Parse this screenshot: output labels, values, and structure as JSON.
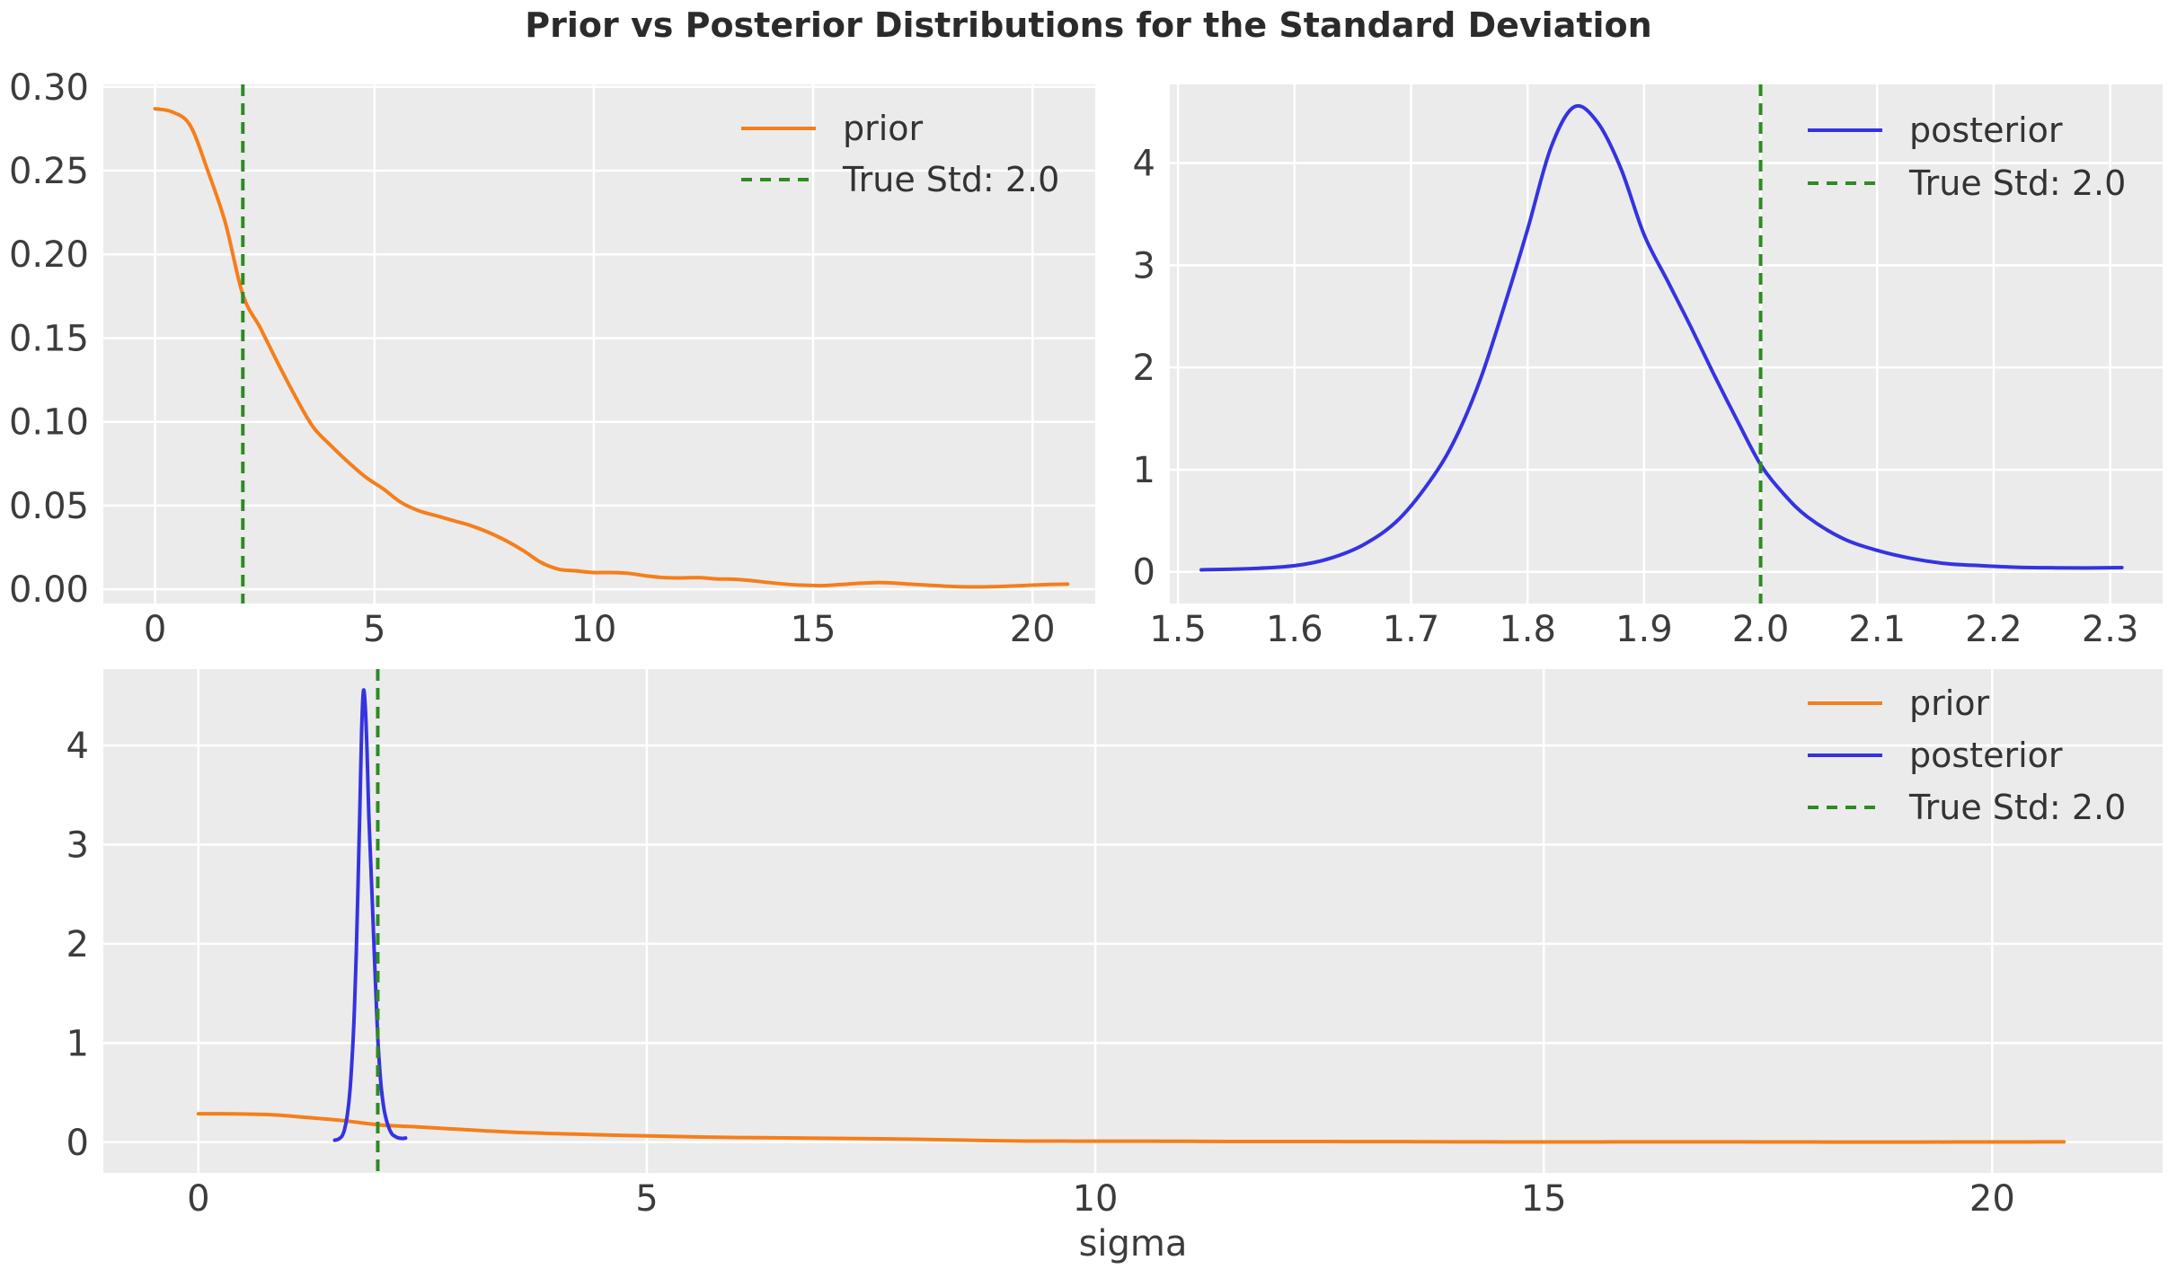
{
  "figure": {
    "title": "Prior vs Posterior Distributions for the Standard Deviation"
  },
  "style": {
    "background": "#ffffff",
    "axes_background": "#ebebeb",
    "grid_color": "#ffffff",
    "tick_label_color": "#3c3c3c",
    "title_color": "#2b2b2b",
    "legend_text_color": "#333333",
    "prior_color": "#f57e1b",
    "posterior_color": "#3533e0",
    "true_std_color": "#2e8b22"
  },
  "chart_data": [
    {
      "id": "prior",
      "name": "prior-subplot",
      "type": "line",
      "xlim": [
        -1.18,
        21.43
      ],
      "ylim": [
        -0.0085,
        0.3015
      ],
      "xticks": [
        0,
        5,
        10,
        15,
        20
      ],
      "xtick_labels": [
        "0",
        "5",
        "10",
        "15",
        "20"
      ],
      "yticks": [
        0.0,
        0.05,
        0.1,
        0.15,
        0.2,
        0.25,
        0.3
      ],
      "ytick_labels": [
        "0.00",
        "0.05",
        "0.10",
        "0.15",
        "0.20",
        "0.25",
        "0.30"
      ],
      "grid": true,
      "legend_position": "upper right",
      "xlabel": "",
      "series": [
        {
          "name": "prior",
          "color_key": "prior_color",
          "style": "solid",
          "x": [
            0.0,
            0.4,
            0.8,
            1.2,
            1.6,
            2.0,
            2.4,
            2.8,
            3.2,
            3.6,
            4.0,
            4.4,
            4.8,
            5.2,
            5.6,
            6.0,
            6.4,
            6.8,
            7.2,
            7.6,
            8.0,
            8.4,
            8.8,
            9.2,
            9.6,
            10.0,
            10.4,
            10.8,
            11.2,
            11.6,
            12.0,
            12.4,
            12.8,
            13.2,
            13.6,
            14.0,
            14.4,
            14.8,
            15.2,
            15.6,
            16.0,
            16.4,
            16.8,
            17.2,
            17.6,
            18.0,
            18.4,
            18.8,
            19.2,
            19.6,
            20.0,
            20.4,
            20.8
          ],
          "y": [
            0.287,
            0.285,
            0.277,
            0.25,
            0.219,
            0.176,
            0.156,
            0.135,
            0.115,
            0.097,
            0.086,
            0.076,
            0.067,
            0.06,
            0.052,
            0.047,
            0.044,
            0.041,
            0.038,
            0.034,
            0.029,
            0.023,
            0.016,
            0.012,
            0.011,
            0.01,
            0.01,
            0.0095,
            0.008,
            0.007,
            0.0068,
            0.007,
            0.0062,
            0.006,
            0.0052,
            0.004,
            0.003,
            0.0024,
            0.0022,
            0.0028,
            0.0035,
            0.004,
            0.0038,
            0.0031,
            0.0025,
            0.0019,
            0.0015,
            0.0014,
            0.0016,
            0.002,
            0.0025,
            0.0029,
            0.0031
          ]
        }
      ],
      "vline": {
        "x": 2.0,
        "label": "True Std: 2.0",
        "style": "dashed",
        "color_key": "true_std_color"
      }
    },
    {
      "id": "posterior",
      "name": "posterior-subplot",
      "type": "line",
      "xlim": [
        1.493,
        2.345
      ],
      "ylim": [
        -0.31,
        4.77
      ],
      "xticks": [
        1.5,
        1.6,
        1.7,
        1.8,
        1.9,
        2.0,
        2.1,
        2.2,
        2.3
      ],
      "xtick_labels": [
        "1.5",
        "1.6",
        "1.7",
        "1.8",
        "1.9",
        "2.0",
        "2.1",
        "2.2",
        "2.3"
      ],
      "yticks": [
        0,
        1,
        2,
        3,
        4
      ],
      "ytick_labels": [
        "0",
        "1",
        "2",
        "3",
        "4"
      ],
      "grid": true,
      "legend_position": "upper right",
      "xlabel": "",
      "series": [
        {
          "name": "posterior",
          "color_key": "posterior_color",
          "style": "solid",
          "x": [
            1.52,
            1.56,
            1.6,
            1.63,
            1.66,
            1.69,
            1.72,
            1.74,
            1.76,
            1.78,
            1.8,
            1.82,
            1.84,
            1.86,
            1.88,
            1.9,
            1.92,
            1.94,
            1.96,
            1.98,
            2.0,
            2.02,
            2.04,
            2.07,
            2.1,
            2.13,
            2.16,
            2.19,
            2.22,
            2.25,
            2.28,
            2.31
          ],
          "y": [
            0.02,
            0.03,
            0.06,
            0.13,
            0.27,
            0.52,
            0.95,
            1.35,
            1.9,
            2.6,
            3.35,
            4.15,
            4.55,
            4.4,
            3.95,
            3.3,
            2.85,
            2.4,
            1.93,
            1.48,
            1.05,
            0.76,
            0.54,
            0.33,
            0.21,
            0.13,
            0.08,
            0.06,
            0.045,
            0.04,
            0.038,
            0.042
          ]
        }
      ],
      "vline": {
        "x": 2.0,
        "label": "True Std: 2.0",
        "style": "dashed",
        "color_key": "true_std_color"
      }
    },
    {
      "id": "combined",
      "name": "combined-subplot",
      "type": "line",
      "xlim": [
        -1.06,
        21.9
      ],
      "ylim": [
        -0.31,
        4.77
      ],
      "xticks": [
        0,
        5,
        10,
        15,
        20
      ],
      "xtick_labels": [
        "0",
        "5",
        "10",
        "15",
        "20"
      ],
      "yticks": [
        0,
        1,
        2,
        3,
        4
      ],
      "ytick_labels": [
        "0",
        "1",
        "2",
        "3",
        "4"
      ],
      "grid": true,
      "legend_position": "upper right",
      "xlabel": "sigma",
      "series": [
        {
          "name": "prior",
          "color_key": "prior_color",
          "style": "solid",
          "x": [
            0.0,
            0.4,
            0.8,
            1.2,
            1.6,
            2.0,
            2.4,
            2.8,
            3.2,
            3.6,
            4.0,
            4.4,
            4.8,
            5.2,
            5.6,
            6.0,
            6.4,
            6.8,
            7.2,
            7.6,
            8.0,
            8.4,
            8.8,
            9.2,
            9.6,
            10.0,
            10.4,
            10.8,
            11.2,
            11.6,
            12.0,
            12.4,
            12.8,
            13.2,
            13.6,
            14.0,
            14.4,
            14.8,
            15.2,
            15.6,
            16.0,
            16.4,
            16.8,
            17.2,
            17.6,
            18.0,
            18.4,
            18.8,
            19.2,
            19.6,
            20.0,
            20.4,
            20.8
          ],
          "y": [
            0.287,
            0.285,
            0.277,
            0.25,
            0.219,
            0.176,
            0.156,
            0.135,
            0.115,
            0.097,
            0.086,
            0.076,
            0.067,
            0.06,
            0.052,
            0.047,
            0.044,
            0.041,
            0.038,
            0.034,
            0.029,
            0.023,
            0.016,
            0.012,
            0.011,
            0.01,
            0.01,
            0.0095,
            0.008,
            0.007,
            0.0068,
            0.007,
            0.0062,
            0.006,
            0.0052,
            0.004,
            0.003,
            0.0024,
            0.0022,
            0.0028,
            0.0035,
            0.004,
            0.0038,
            0.0031,
            0.0025,
            0.0019,
            0.0015,
            0.0014,
            0.0016,
            0.002,
            0.0025,
            0.0029,
            0.0031
          ]
        },
        {
          "name": "posterior",
          "color_key": "posterior_color",
          "style": "solid",
          "x": [
            1.52,
            1.56,
            1.6,
            1.63,
            1.66,
            1.69,
            1.72,
            1.74,
            1.76,
            1.78,
            1.8,
            1.82,
            1.84,
            1.86,
            1.88,
            1.9,
            1.92,
            1.94,
            1.96,
            1.98,
            2.0,
            2.02,
            2.04,
            2.07,
            2.1,
            2.13,
            2.16,
            2.19,
            2.22,
            2.25,
            2.28,
            2.31
          ],
          "y": [
            0.02,
            0.03,
            0.06,
            0.13,
            0.27,
            0.52,
            0.95,
            1.35,
            1.9,
            2.6,
            3.35,
            4.15,
            4.55,
            4.4,
            3.95,
            3.3,
            2.85,
            2.4,
            1.93,
            1.48,
            1.05,
            0.76,
            0.54,
            0.33,
            0.21,
            0.13,
            0.08,
            0.06,
            0.045,
            0.04,
            0.038,
            0.042
          ]
        }
      ],
      "vline": {
        "x": 2.0,
        "label": "True Std: 2.0",
        "style": "dashed",
        "color_key": "true_std_color"
      }
    }
  ]
}
